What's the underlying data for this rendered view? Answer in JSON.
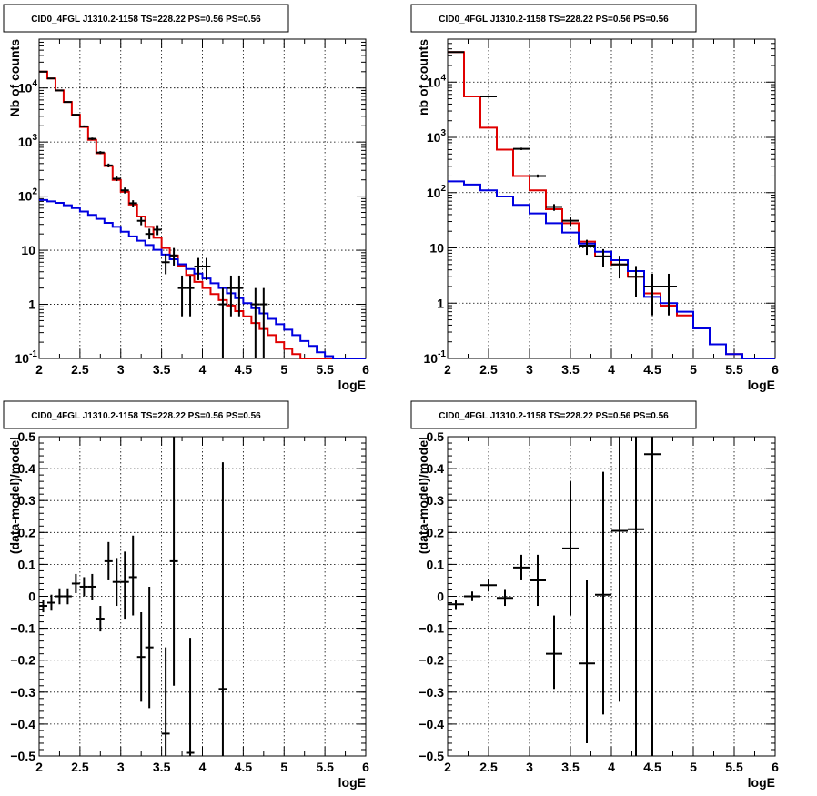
{
  "chart_data": [
    {
      "id": "p1",
      "type": "step",
      "title": "CID0_4FGL J1310.2-1158 TS=228.22 PS=0.56 PS=0.56",
      "xlabel": "logE",
      "ylabel": "Nb of counts",
      "xlim": [
        2,
        6
      ],
      "ylim": [
        0.1,
        80000
      ],
      "yscale": "log",
      "grid": true,
      "x_ticks": [
        "2",
        "2.5",
        "3",
        "3.5",
        "4",
        "4.5",
        "5",
        "5.5",
        "6"
      ],
      "y_ticks": [
        {
          "v": 0.1,
          "label": "10",
          "sup": "-1"
        },
        {
          "v": 1,
          "label": "1",
          "sup": ""
        },
        {
          "v": 10,
          "label": "10",
          "sup": ""
        },
        {
          "v": 100,
          "label": "10",
          "sup": "2"
        },
        {
          "v": 1000,
          "label": "10",
          "sup": "3"
        },
        {
          "v": 10000,
          "label": "10",
          "sup": "4"
        }
      ],
      "bin_edges": [
        2.0,
        2.1,
        2.2,
        2.3,
        2.4,
        2.5,
        2.6,
        2.7,
        2.8,
        2.9,
        3.0,
        3.1,
        3.2,
        3.3,
        3.4,
        3.5,
        3.6,
        3.7,
        3.8,
        3.9,
        4.0,
        4.1,
        4.2,
        4.3,
        4.4,
        4.5,
        4.6,
        4.7,
        4.8,
        4.9,
        5.0,
        5.1,
        5.2,
        5.3,
        5.4,
        5.5,
        5.6,
        5.7,
        5.8,
        5.9,
        6.0
      ],
      "series": [
        {
          "color": "#e00000",
          "values": [
            20000,
            15000,
            9000,
            5500,
            3200,
            1900,
            1100,
            620,
            360,
            200,
            120,
            70,
            42,
            27,
            17,
            11,
            8,
            5.2,
            3.5,
            2.6,
            2.0,
            1.55,
            1.2,
            0.95,
            0.75,
            0.6,
            0.45,
            0.35,
            0.27,
            0.2,
            0.15,
            0.12,
            0.1,
            0.1,
            0.1,
            0.1,
            0.1,
            0.1,
            0.1,
            0.1
          ]
        },
        {
          "color": "#0000e0",
          "values": [
            85,
            80,
            75,
            68,
            60,
            52,
            45,
            38,
            32,
            27,
            22,
            18,
            15,
            12.5,
            10.2,
            8.3,
            6.8,
            5.5,
            4.5,
            3.7,
            3.0,
            2.45,
            2.0,
            1.6,
            1.3,
            1.05,
            0.85,
            0.68,
            0.54,
            0.43,
            0.34,
            0.27,
            0.21,
            0.17,
            0.13,
            0.11,
            0.1,
            0.1,
            0.1,
            0.1
          ]
        }
      ],
      "points": [
        {
          "x": 2.05,
          "y": 20000,
          "lo": 19500,
          "hi": 20500
        },
        {
          "x": 2.15,
          "y": 15000,
          "lo": 14700,
          "hi": 15300
        },
        {
          "x": 2.25,
          "y": 9000,
          "lo": 8800,
          "hi": 9200
        },
        {
          "x": 2.35,
          "y": 5500,
          "lo": 5350,
          "hi": 5650
        },
        {
          "x": 2.45,
          "y": 3200,
          "lo": 3100,
          "hi": 3300
        },
        {
          "x": 2.55,
          "y": 1950,
          "lo": 1870,
          "hi": 2030
        },
        {
          "x": 2.65,
          "y": 1150,
          "lo": 1090,
          "hi": 1210
        },
        {
          "x": 2.75,
          "y": 640,
          "lo": 600,
          "hi": 680
        },
        {
          "x": 2.85,
          "y": 370,
          "lo": 340,
          "hi": 400
        },
        {
          "x": 2.95,
          "y": 210,
          "lo": 190,
          "hi": 230
        },
        {
          "x": 3.05,
          "y": 128,
          "lo": 112,
          "hi": 144
        },
        {
          "x": 3.15,
          "y": 74,
          "lo": 64,
          "hi": 84
        },
        {
          "x": 3.25,
          "y": 35,
          "lo": 29,
          "hi": 41
        },
        {
          "x": 3.35,
          "y": 20,
          "lo": 16,
          "hi": 25
        },
        {
          "x": 3.45,
          "y": 24,
          "lo": 19,
          "hi": 29
        },
        {
          "x": 3.55,
          "y": 6,
          "lo": 3.6,
          "hi": 8.5
        },
        {
          "x": 3.65,
          "y": 8,
          "lo": 5.2,
          "hi": 11
        },
        {
          "x": 3.75,
          "y": 2,
          "lo": 0.6,
          "hi": 3.4
        },
        {
          "x": 3.85,
          "y": 2,
          "lo": 0.6,
          "hi": 3.4
        },
        {
          "x": 3.95,
          "y": 5,
          "lo": 2.8,
          "hi": 7.2
        },
        {
          "x": 4.05,
          "y": 5,
          "lo": 2.8,
          "hi": 7.2
        },
        {
          "x": 4.25,
          "y": 1,
          "lo": 0.1,
          "hi": 2
        },
        {
          "x": 4.35,
          "y": 2,
          "lo": 0.6,
          "hi": 3.4
        },
        {
          "x": 4.45,
          "y": 2,
          "lo": 0.6,
          "hi": 3.4
        },
        {
          "x": 4.65,
          "y": 1,
          "lo": 0.1,
          "hi": 2
        },
        {
          "x": 4.75,
          "y": 1,
          "lo": 0.1,
          "hi": 2
        }
      ]
    },
    {
      "id": "p2",
      "type": "step",
      "title": "CID0_4FGL J1310.2-1158 TS=228.22 PS=0.56 PS=0.56",
      "xlabel": "logE",
      "ylabel": "nb of counts",
      "xlim": [
        2,
        6
      ],
      "ylim": [
        0.1,
        60000
      ],
      "yscale": "log",
      "grid": true,
      "x_ticks": [
        "2",
        "2.5",
        "3",
        "3.5",
        "4",
        "4.5",
        "5",
        "5.5",
        "6"
      ],
      "y_ticks": [
        {
          "v": 0.1,
          "label": "10",
          "sup": "-1"
        },
        {
          "v": 1,
          "label": "1",
          "sup": ""
        },
        {
          "v": 10,
          "label": "10",
          "sup": ""
        },
        {
          "v": 100,
          "label": "10",
          "sup": "2"
        },
        {
          "v": 1000,
          "label": "10",
          "sup": "3"
        },
        {
          "v": 10000,
          "label": "10",
          "sup": "4"
        }
      ],
      "bin_edges": [
        2.0,
        2.2,
        2.4,
        2.6,
        2.8,
        3.0,
        3.2,
        3.4,
        3.6,
        3.8,
        4.0,
        4.2,
        4.4,
        4.6,
        4.8,
        5.0,
        5.2,
        5.4,
        5.6,
        5.8,
        6.0
      ],
      "series": [
        {
          "color": "#e00000",
          "values": [
            35000,
            5500,
            1500,
            600,
            200,
            110,
            50,
            28,
            13,
            7,
            5,
            3,
            1.5,
            0.9,
            0.6,
            0.35,
            0.18,
            0.12,
            0.1,
            0.1
          ]
        },
        {
          "color": "#0000e0",
          "values": [
            160,
            140,
            110,
            85,
            60,
            42,
            28,
            19,
            12,
            8.5,
            6,
            3.8,
            1.3,
            1.0,
            0.7,
            0.35,
            0.18,
            0.12,
            0.1,
            0.1
          ]
        }
      ],
      "points": [
        {
          "x": 2.1,
          "y": 35000,
          "lo": 34700,
          "hi": 35300
        },
        {
          "x": 2.5,
          "y": 5500,
          "lo": 5400,
          "hi": 5600
        },
        {
          "x": 2.9,
          "y": 620,
          "lo": 590,
          "hi": 650
        },
        {
          "x": 3.1,
          "y": 200,
          "lo": 187,
          "hi": 213
        },
        {
          "x": 3.3,
          "y": 55,
          "lo": 47,
          "hi": 62
        },
        {
          "x": 3.5,
          "y": 31,
          "lo": 25,
          "hi": 36
        },
        {
          "x": 3.7,
          "y": 11,
          "lo": 7.5,
          "hi": 14
        },
        {
          "x": 3.9,
          "y": 7,
          "lo": 4.5,
          "hi": 9.5
        },
        {
          "x": 4.1,
          "y": 5,
          "lo": 2.8,
          "hi": 7.2
        },
        {
          "x": 4.3,
          "y": 3,
          "lo": 1.3,
          "hi": 4.7
        },
        {
          "x": 4.5,
          "y": 2,
          "lo": 0.6,
          "hi": 3.4
        },
        {
          "x": 4.7,
          "y": 2,
          "lo": 0.6,
          "hi": 3.4
        }
      ]
    },
    {
      "id": "p3",
      "type": "scatter",
      "title": "CID0_4FGL J1310.2-1158 TS=228.22 PS=0.56 PS=0.56",
      "xlabel": "logE",
      "ylabel": "(data-model)/model",
      "xlim": [
        2,
        6
      ],
      "ylim": [
        -0.5,
        0.5
      ],
      "yscale": "linear",
      "grid": true,
      "x_ticks": [
        "2",
        "2.5",
        "3",
        "3.5",
        "4",
        "4.5",
        "5",
        "5.5",
        "6"
      ],
      "y_ticks": [
        {
          "v": -0.5,
          "label": "−0.5"
        },
        {
          "v": -0.4,
          "label": "−0.4"
        },
        {
          "v": -0.3,
          "label": "−0.3"
        },
        {
          "v": -0.2,
          "label": "−0.2"
        },
        {
          "v": -0.1,
          "label": "−0.1"
        },
        {
          "v": 0,
          "label": "0"
        },
        {
          "v": 0.1,
          "label": "0.1"
        },
        {
          "v": 0.2,
          "label": "0.2"
        },
        {
          "v": 0.3,
          "label": "0.3"
        },
        {
          "v": 0.4,
          "label": "0.4"
        },
        {
          "v": 0.5,
          "label": "0.5"
        }
      ],
      "xerr": 0.05,
      "points": [
        {
          "x": 2.05,
          "y": -0.03,
          "lo": -0.05,
          "hi": -0.01
        },
        {
          "x": 2.15,
          "y": -0.02,
          "lo": -0.045,
          "hi": 0.005
        },
        {
          "x": 2.25,
          "y": 0.0,
          "lo": -0.025,
          "hi": 0.025
        },
        {
          "x": 2.35,
          "y": 0.0,
          "lo": -0.025,
          "hi": 0.025
        },
        {
          "x": 2.45,
          "y": 0.04,
          "lo": 0.01,
          "hi": 0.07
        },
        {
          "x": 2.55,
          "y": 0.03,
          "lo": 0.0,
          "hi": 0.06
        },
        {
          "x": 2.65,
          "y": 0.03,
          "lo": -0.01,
          "hi": 0.07
        },
        {
          "x": 2.75,
          "y": -0.07,
          "lo": -0.11,
          "hi": -0.03
        },
        {
          "x": 2.85,
          "y": 0.11,
          "lo": 0.05,
          "hi": 0.17
        },
        {
          "x": 2.95,
          "y": 0.045,
          "lo": -0.03,
          "hi": 0.12
        },
        {
          "x": 3.05,
          "y": 0.045,
          "lo": -0.07,
          "hi": 0.14
        },
        {
          "x": 3.15,
          "y": 0.06,
          "lo": -0.06,
          "hi": 0.19
        },
        {
          "x": 3.25,
          "y": -0.19,
          "lo": -0.33,
          "hi": -0.05
        },
        {
          "x": 3.35,
          "y": -0.16,
          "lo": -0.35,
          "hi": 0.03
        },
        {
          "x": 3.55,
          "y": -0.43,
          "lo": -0.5,
          "hi": -0.16
        },
        {
          "x": 3.65,
          "y": 0.11,
          "lo": -0.28,
          "hi": 0.5
        },
        {
          "x": 3.85,
          "y": -0.49,
          "lo": -0.5,
          "hi": -0.13
        },
        {
          "x": 4.25,
          "y": -0.29,
          "lo": -0.5,
          "hi": 0.42
        }
      ]
    },
    {
      "id": "p4",
      "type": "scatter",
      "title": "CID0_4FGL J1310.2-1158 TS=228.22 PS=0.56 PS=0.56",
      "xlabel": "logE",
      "ylabel": "(data-model)/model",
      "xlim": [
        2,
        6
      ],
      "ylim": [
        -0.5,
        0.5
      ],
      "yscale": "linear",
      "grid": true,
      "x_ticks": [
        "2",
        "2.5",
        "3",
        "3.5",
        "4",
        "4.5",
        "5",
        "5.5",
        "6"
      ],
      "y_ticks": [
        {
          "v": -0.5,
          "label": "−0.5"
        },
        {
          "v": -0.4,
          "label": "−0.4"
        },
        {
          "v": -0.3,
          "label": "−0.3"
        },
        {
          "v": -0.2,
          "label": "−0.2"
        },
        {
          "v": -0.1,
          "label": "−0.1"
        },
        {
          "v": 0,
          "label": "0"
        },
        {
          "v": 0.1,
          "label": "0.1"
        },
        {
          "v": 0.2,
          "label": "0.2"
        },
        {
          "v": 0.3,
          "label": "0.3"
        },
        {
          "v": 0.4,
          "label": "0.4"
        },
        {
          "v": 0.5,
          "label": "0.5"
        }
      ],
      "xerr": 0.1,
      "points": [
        {
          "x": 2.1,
          "y": -0.025,
          "lo": -0.04,
          "hi": -0.01
        },
        {
          "x": 2.3,
          "y": 0.0,
          "lo": -0.015,
          "hi": 0.015
        },
        {
          "x": 2.5,
          "y": 0.035,
          "lo": 0.015,
          "hi": 0.055
        },
        {
          "x": 2.7,
          "y": -0.005,
          "lo": -0.03,
          "hi": 0.02
        },
        {
          "x": 2.9,
          "y": 0.09,
          "lo": 0.05,
          "hi": 0.13
        },
        {
          "x": 3.1,
          "y": 0.05,
          "lo": -0.03,
          "hi": 0.13
        },
        {
          "x": 3.3,
          "y": -0.18,
          "lo": -0.29,
          "hi": -0.06
        },
        {
          "x": 3.5,
          "y": 0.15,
          "lo": -0.06,
          "hi": 0.36
        },
        {
          "x": 3.7,
          "y": -0.21,
          "lo": -0.46,
          "hi": 0.05
        },
        {
          "x": 3.9,
          "y": 0.005,
          "lo": -0.37,
          "hi": 0.39
        },
        {
          "x": 4.1,
          "y": 0.205,
          "lo": -0.33,
          "hi": 0.5
        },
        {
          "x": 4.3,
          "y": 0.21,
          "lo": -0.5,
          "hi": 0.5
        },
        {
          "x": 4.5,
          "y": 0.445,
          "lo": -0.5,
          "hi": 0.5
        }
      ]
    }
  ]
}
